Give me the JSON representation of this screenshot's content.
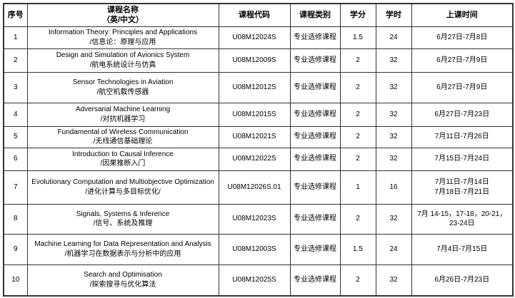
{
  "table": {
    "headers": {
      "index": "序号",
      "name_line1": "课程名称",
      "name_line2": "（英/中文）",
      "code": "课程代码",
      "category": "课程类别",
      "credits": "学分",
      "hours": "学时",
      "time": "上课时间"
    },
    "rows": [
      {
        "index": "1",
        "name_en": "Information Theory: Principles and Applications",
        "name_zh": "/信息论：原理与应用",
        "code": "U08M12024S",
        "category": "专业选修课程",
        "credits": "1.5",
        "hours": "24",
        "time": "6月27日-7月8日"
      },
      {
        "index": "2",
        "name_en": "Design and Simulation of Avionics System",
        "name_zh": "/航电系统设计与仿真",
        "code": "U08M12009S",
        "category": "专业选修课程",
        "credits": "2",
        "hours": "32",
        "time": "6月27日-7月9日"
      },
      {
        "index": "3",
        "name_en": "Sensor Technologies in Aviation",
        "name_zh": "/航空机载传感器",
        "code": "U08M12012S",
        "category": "专业选修课程",
        "credits": "2",
        "hours": "32",
        "time": "6月27日-7月9日"
      },
      {
        "index": "4",
        "name_en": "Adversarial Machine Learning",
        "name_zh": "/对抗机器学习",
        "code": "U08M12015S",
        "category": "专业选修课程",
        "credits": "2",
        "hours": "32",
        "time": "6月27日-7月23日"
      },
      {
        "index": "5",
        "name_en": "Fundamental of Wireless Communication",
        "name_zh": "/无线通信基础理论",
        "code": "U08M12021S",
        "category": "专业选修课程",
        "credits": "2",
        "hours": "32",
        "time": "7月11日-7月26日"
      },
      {
        "index": "6",
        "name_en": "Introduction to Causal Inference",
        "name_zh": "/因果推断入门",
        "code": "U08M12022S",
        "category": "专业选修课程",
        "credits": "2",
        "hours": "32",
        "time": "7月15日-7月24日"
      },
      {
        "index": "7",
        "name_en": "Evolutionary Computation and Multiobjective Optimization",
        "name_zh": "/进化计算与多目标优化/",
        "code": "U08M12026S.01",
        "category": "专业选修课程",
        "credits": "1",
        "hours": "16",
        "time": "7月11日-7月14日\n7月18日-7月21日"
      },
      {
        "index": "8",
        "name_en": "Signals, Systems & Inference",
        "name_zh": "/信号、系统及推理",
        "code": "U08M12023S",
        "category": "专业选修课程",
        "credits": "2",
        "hours": "32",
        "time": "7月 14-15，17-18，20-21，23-24日"
      },
      {
        "index": "9",
        "name_en": "Machine Learning for Data Representation and Analysis",
        "name_zh": "/机器学习在数据表示与分析中的应用",
        "code": "U08M12003S",
        "category": "专业选修课程",
        "credits": "1.5",
        "hours": "24",
        "time": "7月4日-7月15日"
      },
      {
        "index": "10",
        "name_en": "Search and Optimisation",
        "name_zh": "/探索搜寻与优化算法",
        "code": "U08M12025S",
        "category": "专业选修课程",
        "credits": "2",
        "hours": "32",
        "time": "6月26日-7月23日"
      }
    ]
  }
}
